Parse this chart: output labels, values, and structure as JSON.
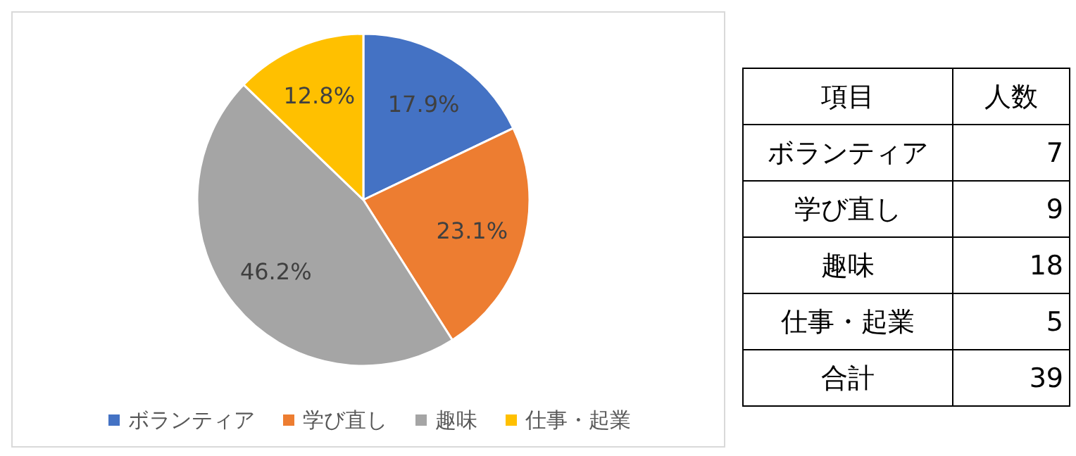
{
  "chart_data": [
    {
      "type": "pie",
      "categories": [
        "ボランティア",
        "学び直し",
        "趣味",
        "仕事・起業"
      ],
      "values": [
        17.9,
        23.1,
        46.2,
        12.8
      ],
      "value_labels": [
        "17.9%",
        "23.1%",
        "46.2%",
        "12.8%"
      ],
      "colors": [
        "#4472c4",
        "#ed7d31",
        "#a5a5a5",
        "#ffc000"
      ],
      "legend": "bottom"
    },
    {
      "type": "other",
      "annotations": [
        "項目",
        "人数",
        "ボランティア",
        "7",
        "学び直し",
        "9",
        "趣味",
        "18",
        "仕事・起業",
        "5",
        "合計",
        "39"
      ]
    }
  ]
}
